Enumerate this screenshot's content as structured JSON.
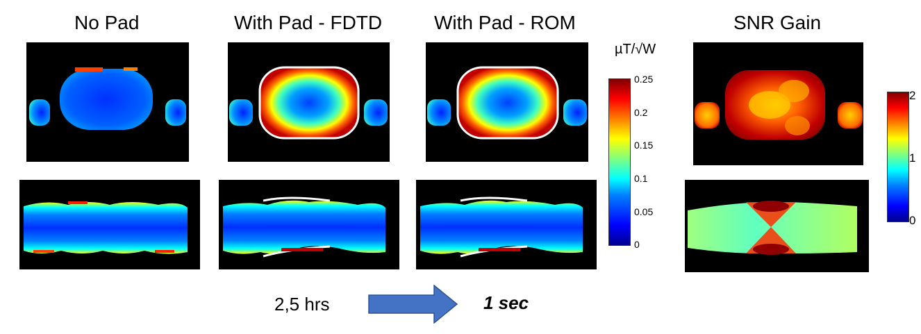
{
  "titles": {
    "no_pad": "No Pad",
    "with_pad_fdtd": "With Pad - FDTD",
    "with_pad_rom": "With Pad - ROM",
    "snr_gain": "SNR Gain"
  },
  "colorbar_b1": {
    "unit": "µT/√W",
    "ticks": [
      "0.25",
      "0.2",
      "0.15",
      "0.1",
      "0.05",
      "0"
    ]
  },
  "colorbar_snr": {
    "ticks": [
      "2",
      "1",
      "0"
    ]
  },
  "footer": {
    "time_before": "2,5 hrs",
    "time_after": "1 sec"
  },
  "colors": {
    "arrow": "#4472c4"
  }
}
